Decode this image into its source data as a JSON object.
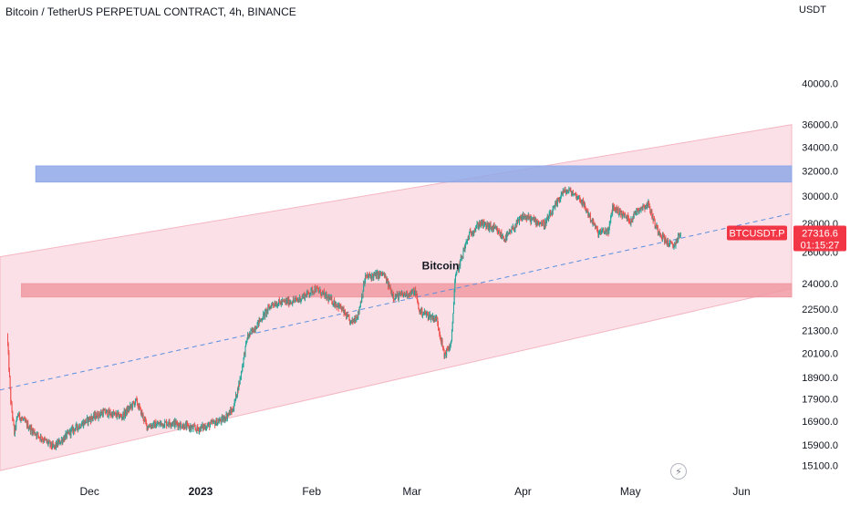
{
  "header": {
    "title": "Bitcoin / TetherUS PERPETUAL CONTRACT, 4h, BINANCE",
    "currency": "USDT"
  },
  "price_tag": {
    "symbol": "BTCUSDT.P",
    "price": "27316.6",
    "countdown": "01:15:27",
    "color": "#f23645"
  },
  "colors": {
    "up": "#26a69a",
    "down": "#ef5350",
    "channel_fill": "#f8c9d3",
    "zone_upper": "#8fa8e8",
    "zone_lower": "#f09aa2",
    "dashed_line": "#5b8ede"
  },
  "icons": {
    "replay": "lightning-icon"
  },
  "chart_data": {
    "type": "candlestick",
    "title": "Bitcoin / TetherUS PERPETUAL CONTRACT, 4h, BINANCE",
    "annotation": "Bitcoin",
    "scale": "log",
    "ylim": [
      14700,
      47000
    ],
    "y_ticks": [
      40000,
      36000,
      34000,
      32000,
      30000,
      28000,
      26000,
      24000,
      22500,
      21300,
      20100,
      18900,
      17900,
      16900,
      15900,
      15100
    ],
    "x_ticks": [
      "Dec",
      "2023",
      "Feb",
      "Mar",
      "Apr",
      "May",
      "Jun"
    ],
    "x_tick_dates": [
      "2022-12-01",
      "2023-01-01",
      "2023-02-01",
      "2023-03-01",
      "2023-04-01",
      "2023-05-01",
      "2023-06-01"
    ],
    "price_path": [
      [
        "2022-11-08",
        21100
      ],
      [
        "2022-11-09",
        17800
      ],
      [
        "2022-11-10",
        16400
      ],
      [
        "2022-11-11",
        17200
      ],
      [
        "2022-11-15",
        16500
      ],
      [
        "2022-11-21",
        15800
      ],
      [
        "2022-11-26",
        16500
      ],
      [
        "2022-12-01",
        17000
      ],
      [
        "2022-12-05",
        17300
      ],
      [
        "2022-12-10",
        17100
      ],
      [
        "2022-12-14",
        17800
      ],
      [
        "2022-12-17",
        16700
      ],
      [
        "2022-12-24",
        16850
      ],
      [
        "2022-12-31",
        16550
      ],
      [
        "2023-01-07",
        16950
      ],
      [
        "2023-01-10",
        17400
      ],
      [
        "2023-01-12",
        18800
      ],
      [
        "2023-01-14",
        20900
      ],
      [
        "2023-01-21",
        22800
      ],
      [
        "2023-01-28",
        23000
      ],
      [
        "2023-02-02",
        23700
      ],
      [
        "2023-02-09",
        22600
      ],
      [
        "2023-02-12",
        21700
      ],
      [
        "2023-02-14",
        22200
      ],
      [
        "2023-02-16",
        24400
      ],
      [
        "2023-02-21",
        24600
      ],
      [
        "2023-02-24",
        23200
      ],
      [
        "2023-03-02",
        23500
      ],
      [
        "2023-03-03",
        22400
      ],
      [
        "2023-03-08",
        21900
      ],
      [
        "2023-03-10",
        20000
      ],
      [
        "2023-03-12",
        20600
      ],
      [
        "2023-03-13",
        24200
      ],
      [
        "2023-03-15",
        25800
      ],
      [
        "2023-03-17",
        27200
      ],
      [
        "2023-03-20",
        28000
      ],
      [
        "2023-03-24",
        27600
      ],
      [
        "2023-03-27",
        26900
      ],
      [
        "2023-04-01",
        28500
      ],
      [
        "2023-04-07",
        27900
      ],
      [
        "2023-04-10",
        29200
      ],
      [
        "2023-04-12",
        30300
      ],
      [
        "2023-04-14",
        30400
      ],
      [
        "2023-04-17",
        29800
      ],
      [
        "2023-04-20",
        28300
      ],
      [
        "2023-04-22",
        27300
      ],
      [
        "2023-04-25",
        27500
      ],
      [
        "2023-04-26",
        29200
      ],
      [
        "2023-05-01",
        28200
      ],
      [
        "2023-05-03",
        29000
      ],
      [
        "2023-05-06",
        29400
      ],
      [
        "2023-05-08",
        27800
      ],
      [
        "2023-05-11",
        26700
      ],
      [
        "2023-05-13",
        26400
      ],
      [
        "2023-05-15",
        27316.6
      ]
    ],
    "channel": {
      "start_date": "2022-11-06",
      "end_date": "2023-06-15",
      "upper": [
        25700,
        36000
      ],
      "lower": [
        14900,
        23700
      ],
      "mid": [
        18300,
        28700
      ]
    },
    "zones": [
      {
        "name": "upper-zone",
        "from_date": "2022-11-16",
        "to_date": "2023-06-15",
        "low": 31100,
        "high": 32400
      },
      {
        "name": "lower-zone",
        "from_date": "2022-11-12",
        "to_date": "2023-06-15",
        "low": 23200,
        "high": 24000
      }
    ],
    "last_price": 27316.6
  }
}
